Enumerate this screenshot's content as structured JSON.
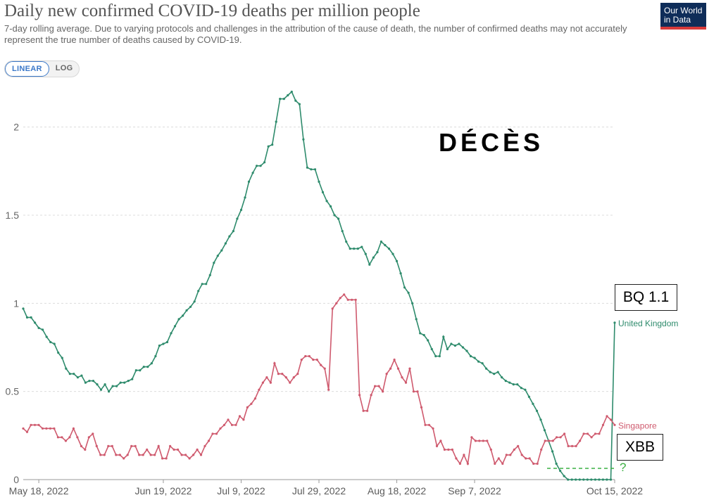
{
  "header": {
    "title": "Daily new confirmed COVID-19 deaths per million people",
    "subtitle": "7-day rolling average. Due to varying protocols and challenges in the attribution of the cause of death, the number of confirmed deaths may not accurately represent the true number of deaths caused by COVID-19.",
    "scale_options": [
      "LINEAR",
      "LOG"
    ],
    "scale_selected": "LINEAR",
    "logo": "Our World in Data"
  },
  "annotations": {
    "deces": "DÉCÈS",
    "bq": "BQ 1.1",
    "xbb": "XBB",
    "question": "?"
  },
  "colors": {
    "uk": "#2e8b6c",
    "sg": "#cf5a6e",
    "dashed": "#3cb043"
  },
  "chart_data": {
    "type": "line",
    "title": "Daily new confirmed COVID-19 deaths per million people",
    "ylim": [
      0,
      2.25
    ],
    "yticks": [
      0,
      0.5,
      1,
      1.5,
      2
    ],
    "xticks": [
      "May 18, 2022",
      "Jun 19, 2022",
      "Jul 9, 2022",
      "Jul 29, 2022",
      "Aug 18, 2022",
      "Sep 7, 2022",
      "Oct 15, 2022"
    ],
    "grid": true,
    "legend": "end-of-line labels",
    "series": [
      {
        "name": "United Kingdom",
        "values": [
          0.97,
          0.92,
          0.92,
          0.89,
          0.86,
          0.85,
          0.81,
          0.78,
          0.77,
          0.72,
          0.69,
          0.63,
          0.6,
          0.6,
          0.58,
          0.59,
          0.55,
          0.56,
          0.56,
          0.54,
          0.51,
          0.54,
          0.5,
          0.53,
          0.53,
          0.55,
          0.55,
          0.56,
          0.57,
          0.62,
          0.62,
          0.64,
          0.64,
          0.66,
          0.7,
          0.76,
          0.77,
          0.78,
          0.83,
          0.87,
          0.91,
          0.93,
          0.96,
          0.98,
          1.01,
          1.07,
          1.11,
          1.11,
          1.16,
          1.23,
          1.27,
          1.3,
          1.34,
          1.38,
          1.41,
          1.48,
          1.53,
          1.6,
          1.69,
          1.74,
          1.78,
          1.78,
          1.8,
          1.89,
          1.9,
          2.03,
          2.16,
          2.16,
          2.18,
          2.2,
          2.15,
          2.13,
          1.93,
          1.77,
          1.76,
          1.76,
          1.69,
          1.63,
          1.58,
          1.55,
          1.5,
          1.48,
          1.41,
          1.35,
          1.31,
          1.31,
          1.31,
          1.32,
          1.28,
          1.22,
          1.26,
          1.29,
          1.35,
          1.33,
          1.31,
          1.28,
          1.24,
          1.17,
          1.09,
          1.06,
          1.0,
          0.91,
          0.83,
          0.82,
          0.79,
          0.74,
          0.7,
          0.7,
          0.81,
          0.74,
          0.77,
          0.76,
          0.77,
          0.75,
          0.73,
          0.7,
          0.69,
          0.67,
          0.66,
          0.63,
          0.61,
          0.6,
          0.61,
          0.58,
          0.56,
          0.55,
          0.54,
          0.54,
          0.52,
          0.51,
          0.47,
          0.43,
          0.39,
          0.34,
          0.28,
          0.22,
          0.16,
          0.09,
          0.05,
          0.02,
          0.0,
          0.0,
          0.0,
          0.0,
          0.0,
          0.0,
          0.0,
          0.0,
          0.0,
          0.0,
          0.0,
          0.0,
          0.89
        ]
      },
      {
        "name": "Singapore",
        "values": [
          0.29,
          0.27,
          0.31,
          0.31,
          0.31,
          0.29,
          0.29,
          0.29,
          0.29,
          0.24,
          0.24,
          0.22,
          0.24,
          0.29,
          0.24,
          0.19,
          0.17,
          0.24,
          0.26,
          0.19,
          0.14,
          0.14,
          0.19,
          0.19,
          0.14,
          0.14,
          0.12,
          0.14,
          0.19,
          0.19,
          0.14,
          0.14,
          0.17,
          0.14,
          0.14,
          0.19,
          0.12,
          0.12,
          0.19,
          0.17,
          0.17,
          0.14,
          0.14,
          0.12,
          0.14,
          0.17,
          0.14,
          0.19,
          0.22,
          0.26,
          0.26,
          0.29,
          0.31,
          0.34,
          0.31,
          0.31,
          0.36,
          0.34,
          0.41,
          0.43,
          0.46,
          0.51,
          0.55,
          0.58,
          0.55,
          0.66,
          0.6,
          0.6,
          0.58,
          0.55,
          0.58,
          0.6,
          0.68,
          0.7,
          0.7,
          0.68,
          0.68,
          0.65,
          0.63,
          0.51,
          0.97,
          1.0,
          1.03,
          1.05,
          1.02,
          1.02,
          1.02,
          0.48,
          0.39,
          0.39,
          0.48,
          0.53,
          0.53,
          0.5,
          0.6,
          0.63,
          0.68,
          0.63,
          0.58,
          0.55,
          0.63,
          0.5,
          0.5,
          0.41,
          0.31,
          0.31,
          0.29,
          0.19,
          0.22,
          0.17,
          0.17,
          0.17,
          0.12,
          0.09,
          0.14,
          0.09,
          0.24,
          0.22,
          0.22,
          0.22,
          0.22,
          0.17,
          0.09,
          0.12,
          0.09,
          0.14,
          0.14,
          0.17,
          0.19,
          0.14,
          0.12,
          0.12,
          0.09,
          0.09,
          0.17,
          0.22,
          0.22,
          0.22,
          0.24,
          0.24,
          0.26,
          0.19,
          0.19,
          0.19,
          0.22,
          0.26,
          0.26,
          0.24,
          0.26,
          0.26,
          0.31,
          0.36,
          0.34,
          0.31
        ]
      }
    ]
  }
}
